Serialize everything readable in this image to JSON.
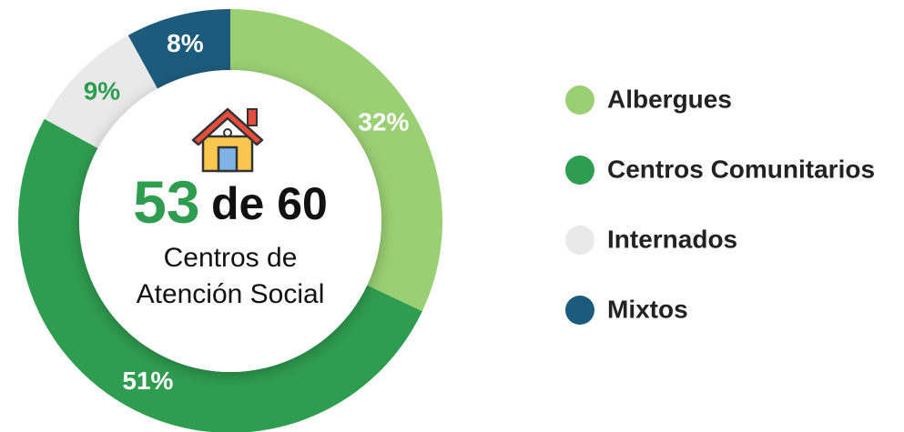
{
  "chart_data": {
    "type": "donut",
    "categories": [
      "Albergues",
      "Centros Comunitarios",
      "Internados",
      "Mixtos"
    ],
    "values": [
      32,
      51,
      9,
      8
    ],
    "value_labels": [
      "32%",
      "51%",
      "9%",
      "8%"
    ],
    "colors": [
      "#9bcf73",
      "#2f9d50",
      "#e9e9e9",
      "#1d5b7c"
    ],
    "label_colors": [
      "#ffffff",
      "#ffffff",
      "#2f9d50",
      "#ffffff"
    ],
    "center_value": "53",
    "center_suffix": "de 60",
    "center_lines": [
      "Centros de",
      "Atención Social"
    ],
    "legend": "right"
  }
}
